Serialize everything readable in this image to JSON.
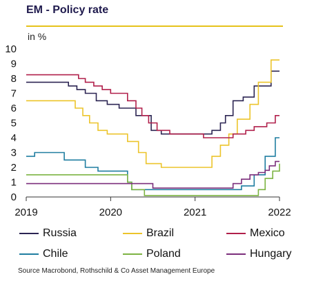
{
  "header": {
    "title": "EM - Policy rate",
    "unit": "in %"
  },
  "source": "Source Macrobond, Rothschild & Co Asset Management Europe",
  "colors": {
    "topline": "#e6c21a",
    "axis": "#333333"
  },
  "chart_data": {
    "type": "line",
    "title": "EM - Policy rate",
    "ylabel": "in %",
    "xlim": [
      2019,
      2022
    ],
    "ylim": [
      0,
      10
    ],
    "yticks": [
      "0",
      "1",
      "2",
      "3",
      "4",
      "5",
      "6",
      "7",
      "8",
      "9",
      "10"
    ],
    "xticks": [
      "2019",
      "2020",
      "2021",
      "2022"
    ],
    "grid": false,
    "legend": "bottom",
    "series": [
      {
        "name": "Russia",
        "color": "#2b2452",
        "points": [
          [
            2019.0,
            7.75
          ],
          [
            2019.5,
            7.5
          ],
          [
            2019.6,
            7.25
          ],
          [
            2019.7,
            7.0
          ],
          [
            2019.83,
            6.5
          ],
          [
            2019.96,
            6.25
          ],
          [
            2020.1,
            6.0
          ],
          [
            2020.3,
            5.5
          ],
          [
            2020.48,
            4.5
          ],
          [
            2020.6,
            4.25
          ],
          [
            2021.2,
            4.5
          ],
          [
            2021.3,
            5.0
          ],
          [
            2021.36,
            5.5
          ],
          [
            2021.45,
            6.5
          ],
          [
            2021.57,
            6.75
          ],
          [
            2021.7,
            7.5
          ],
          [
            2021.9,
            8.5
          ],
          [
            2022.0,
            8.5
          ]
        ]
      },
      {
        "name": "Brazil",
        "color": "#ecc42a",
        "points": [
          [
            2019.0,
            6.5
          ],
          [
            2019.58,
            6.0
          ],
          [
            2019.67,
            5.5
          ],
          [
            2019.75,
            5.0
          ],
          [
            2019.85,
            4.5
          ],
          [
            2019.96,
            4.25
          ],
          [
            2020.1,
            4.25
          ],
          [
            2020.2,
            3.75
          ],
          [
            2020.33,
            3.0
          ],
          [
            2020.42,
            2.25
          ],
          [
            2020.6,
            2.0
          ],
          [
            2021.2,
            2.75
          ],
          [
            2021.3,
            3.5
          ],
          [
            2021.4,
            4.25
          ],
          [
            2021.5,
            5.25
          ],
          [
            2021.65,
            6.25
          ],
          [
            2021.75,
            7.75
          ],
          [
            2021.9,
            9.25
          ],
          [
            2022.0,
            9.25
          ]
        ]
      },
      {
        "name": "Mexico",
        "color": "#b01f4a",
        "points": [
          [
            2019.0,
            8.25
          ],
          [
            2019.62,
            8.0
          ],
          [
            2019.7,
            7.75
          ],
          [
            2019.8,
            7.5
          ],
          [
            2019.9,
            7.25
          ],
          [
            2020.0,
            7.0
          ],
          [
            2020.2,
            6.5
          ],
          [
            2020.3,
            6.0
          ],
          [
            2020.37,
            5.5
          ],
          [
            2020.45,
            5.0
          ],
          [
            2020.55,
            4.5
          ],
          [
            2020.7,
            4.25
          ],
          [
            2021.1,
            4.0
          ],
          [
            2021.45,
            4.25
          ],
          [
            2021.6,
            4.5
          ],
          [
            2021.7,
            4.75
          ],
          [
            2021.85,
            5.0
          ],
          [
            2021.95,
            5.5
          ],
          [
            2022.0,
            5.5
          ]
        ]
      },
      {
        "name": "Chile",
        "color": "#1f7da0",
        "points": [
          [
            2019.0,
            2.75
          ],
          [
            2019.1,
            3.0
          ],
          [
            2019.45,
            2.5
          ],
          [
            2019.7,
            2.0
          ],
          [
            2019.85,
            1.75
          ],
          [
            2020.2,
            1.0
          ],
          [
            2020.25,
            0.5
          ],
          [
            2021.55,
            0.75
          ],
          [
            2021.7,
            1.5
          ],
          [
            2021.83,
            2.75
          ],
          [
            2021.95,
            4.0
          ],
          [
            2022.0,
            4.0
          ]
        ]
      },
      {
        "name": "Poland",
        "color": "#7cb342",
        "points": [
          [
            2019.0,
            1.5
          ],
          [
            2020.2,
            1.0
          ],
          [
            2020.25,
            0.5
          ],
          [
            2020.4,
            0.1
          ],
          [
            2021.75,
            0.5
          ],
          [
            2021.83,
            1.25
          ],
          [
            2021.92,
            1.75
          ],
          [
            2022.0,
            2.25
          ]
        ]
      },
      {
        "name": "Hungary",
        "color": "#7b2d7b",
        "points": [
          [
            2019.0,
            0.9
          ],
          [
            2020.5,
            0.6
          ],
          [
            2021.45,
            0.9
          ],
          [
            2021.55,
            1.2
          ],
          [
            2021.65,
            1.5
          ],
          [
            2021.75,
            1.65
          ],
          [
            2021.83,
            1.8
          ],
          [
            2021.88,
            2.1
          ],
          [
            2021.95,
            2.4
          ],
          [
            2022.0,
            2.4
          ]
        ]
      }
    ]
  }
}
